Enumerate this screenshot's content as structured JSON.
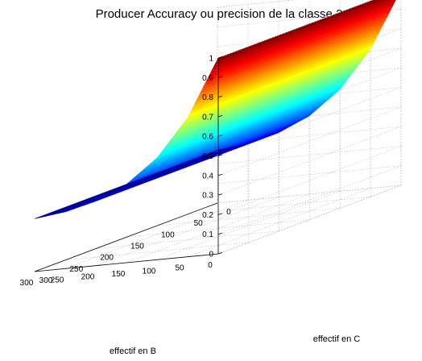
{
  "chart_data": {
    "type": "surface",
    "title": "Producer Accuracy ou precision de la classe 2",
    "xlabel": "effectif en B",
    "ylabel": "effectif en C",
    "zlabel": "",
    "xlim": [
      0,
      300
    ],
    "ylim": [
      0,
      300
    ],
    "zlim": [
      0,
      1
    ],
    "x_ticks": [
      0,
      50,
      100,
      150,
      200,
      250,
      300
    ],
    "y_ticks": [
      0,
      50,
      100,
      150,
      200,
      250,
      300
    ],
    "z_ticks": [
      0,
      0.1,
      0.2,
      0.3,
      0.4,
      0.5,
      0.6,
      0.7,
      0.8,
      0.9,
      1
    ],
    "z_tick_labels": [
      "0",
      "0.1",
      "0.2",
      "0.3",
      "0.4",
      "0.5",
      "0.6",
      "0.7",
      "0.8",
      "0.9",
      "1"
    ],
    "surface": {
      "description_of_values": "z depends only on effectif en B; constant along effectif en C",
      "x": [
        0,
        50,
        100,
        150,
        200,
        250,
        300
      ],
      "z_at_x": [
        1.0,
        0.71,
        0.52,
        0.4,
        0.33,
        0.29,
        0.27
      ]
    },
    "colormap": "jet",
    "grid": true
  }
}
